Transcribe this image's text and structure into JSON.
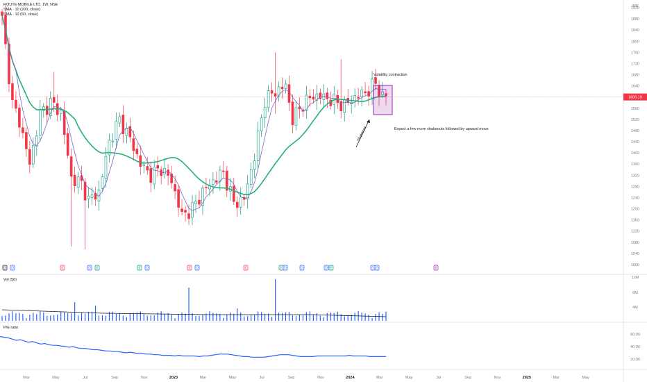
{
  "legend": {
    "title": "ROUTE MOBILE LTD, 1W, NSE",
    "ma1": "SMA · 10 (200, close)",
    "ma2": "SMA · 10 (50, close)"
  },
  "currency": "INR",
  "panes": {
    "volume_label": "Vol (50)",
    "pe_label": "P/E ratio"
  },
  "price_tag": "1600.19",
  "annotations": {
    "volatility": "Volatility contraction",
    "expect": "Expect a few more shakeouts followed by upward move",
    "arrow_label": "Shakeout"
  },
  "colors": {
    "up": "#089981",
    "down": "#f23645",
    "slow_ma": "#26b07a",
    "fast_ma": "#7b61c8",
    "volume": "#2962ff",
    "pe": "#2962ff",
    "box": "#9c27b0",
    "price_line": "#f23645"
  },
  "events": [
    {
      "label": "D",
      "color": "#131722"
    },
    {
      "label": "D",
      "color": "#2962ff"
    },
    {
      "label": "E",
      "color": "#f23645"
    },
    {
      "label": "D",
      "color": "#2962ff"
    },
    {
      "label": "E",
      "color": "#089981"
    },
    {
      "label": "E",
      "color": "#089981"
    },
    {
      "label": "D",
      "color": "#2962ff"
    },
    {
      "label": "E",
      "color": "#f23645"
    },
    {
      "label": "D",
      "color": "#2962ff"
    },
    {
      "label": "E",
      "color": "#f23645"
    },
    {
      "label": "E",
      "color": "#089981"
    },
    {
      "label": "D",
      "color": "#2962ff"
    },
    {
      "label": "D",
      "color": "#2962ff"
    },
    {
      "label": "D",
      "color": "#2962ff"
    },
    {
      "label": "E",
      "color": "#089981"
    },
    {
      "label": "D",
      "color": "#2962ff"
    },
    {
      "label": "D",
      "color": "#2962ff"
    },
    {
      "label": "E",
      "color": "#9c27b0"
    }
  ],
  "chart_data": [
    {
      "type": "candlestick",
      "title": "ROUTE MOBILE LTD, 1W, NSE",
      "y_ticks": [
        1920,
        1880,
        1840,
        1800,
        1760,
        1720,
        1680,
        1640,
        1600,
        1560,
        1520,
        1480,
        1440,
        1400,
        1360,
        1320,
        1280,
        1240,
        1200,
        1160,
        1120,
        1080,
        1040,
        1000
      ],
      "ylim": [
        990,
        1935
      ],
      "x_ticks": [
        "Mar",
        "May",
        "Jul",
        "Sep",
        "Nov",
        "2023",
        "Mar",
        "May",
        "Jul",
        "Sep",
        "Nov",
        "2024",
        "Mar",
        "May",
        "Jul",
        "Sep",
        "Nov",
        "2025",
        "Mar",
        "May"
      ],
      "seed_ohlc": [
        1880,
        1575,
        1515,
        1205
      ]
    },
    {
      "type": "bar",
      "title": "Vol (50)",
      "y_ticks": [
        "12M",
        "8M",
        "4M"
      ]
    },
    {
      "type": "line",
      "title": "P/E ratio",
      "y_ticks": [
        "60.00",
        "40.00",
        "20.00"
      ],
      "series": [
        {
          "values": [
            56,
            55,
            54,
            52,
            50,
            51,
            49,
            47,
            48,
            46,
            44,
            45,
            43,
            42,
            42,
            41,
            40,
            39,
            40,
            38,
            37,
            37,
            36,
            35,
            35,
            34,
            33,
            33,
            32,
            32,
            31,
            30,
            31,
            30,
            29,
            29,
            28,
            28,
            27,
            27,
            26,
            26,
            26,
            25,
            26,
            25,
            25,
            25,
            25,
            24,
            25,
            25,
            26,
            27,
            28,
            28,
            28,
            27,
            26,
            25,
            24,
            24,
            23,
            23,
            23,
            23,
            24,
            25,
            26,
            27,
            27,
            27,
            26,
            25,
            24,
            24,
            24,
            24,
            25,
            25,
            25,
            25,
            25,
            25,
            25,
            25,
            26,
            25,
            25,
            25,
            25,
            24,
            24,
            24,
            24,
            24
          ]
        }
      ]
    }
  ]
}
